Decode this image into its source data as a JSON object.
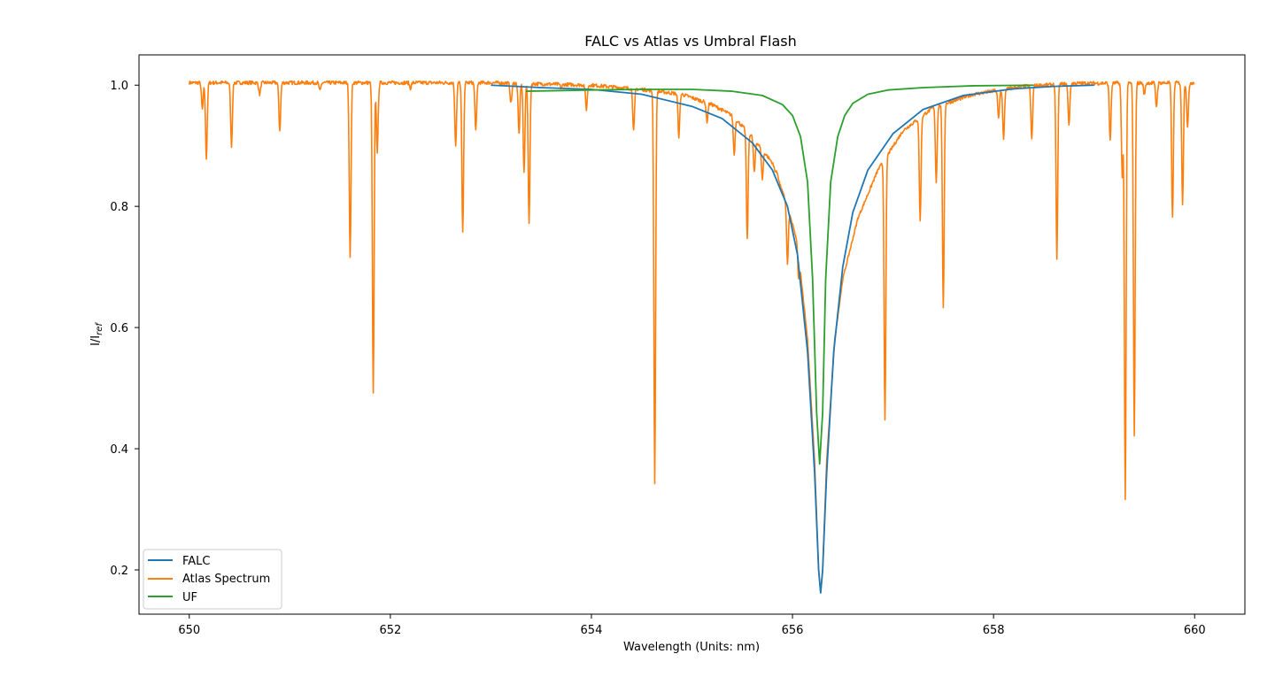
{
  "chart_data": {
    "type": "line",
    "title": "FALC vs Atlas vs Umbral Flash",
    "xlabel": "Wavelength (Units: nm)",
    "ylabel": "I/I_ref",
    "ylabel_main": "I/I",
    "ylabel_sub": "ref",
    "xlim": [
      649.5,
      660.5
    ],
    "ylim": [
      0.127,
      1.05
    ],
    "xticks": [
      650,
      652,
      654,
      656,
      658,
      660
    ],
    "xtick_labels": [
      "650",
      "652",
      "654",
      "656",
      "658",
      "660"
    ],
    "yticks": [
      0.2,
      0.4,
      0.6,
      0.8,
      1.0
    ],
    "ytick_labels": [
      "0.2",
      "0.4",
      "0.6",
      "0.8",
      "1.0"
    ],
    "grid": false,
    "legend_position": "lower-left",
    "line_center": 656.28,
    "series": [
      {
        "name": "FALC",
        "color": "#1f77b4",
        "x": [
          653.0,
          653.5,
          654.0,
          654.5,
          655.0,
          655.3,
          655.6,
          655.8,
          655.95,
          656.05,
          656.15,
          656.22,
          656.26,
          656.28,
          656.3,
          656.34,
          656.41,
          656.5,
          656.6,
          656.75,
          657.0,
          657.3,
          657.7,
          658.2,
          658.6,
          659.0
        ],
        "y": [
          1.0,
          0.996,
          0.993,
          0.985,
          0.965,
          0.945,
          0.905,
          0.86,
          0.8,
          0.72,
          0.56,
          0.36,
          0.2,
          0.162,
          0.2,
          0.36,
          0.56,
          0.7,
          0.79,
          0.86,
          0.92,
          0.96,
          0.983,
          0.994,
          0.998,
          1.0
        ]
      },
      {
        "name": "Atlas Spectrum",
        "color": "#ff7f0e",
        "continuum": [
          [
            650.0,
            1.004
          ],
          [
            653.0,
            1.004
          ],
          [
            653.5,
            1.002
          ],
          [
            654.0,
            1.0
          ],
          [
            654.5,
            0.993
          ],
          [
            654.9,
            0.985
          ],
          [
            655.2,
            0.968
          ],
          [
            655.4,
            0.95
          ],
          [
            655.6,
            0.915
          ],
          [
            655.8,
            0.872
          ],
          [
            655.95,
            0.8
          ],
          [
            656.05,
            0.74
          ],
          [
            656.15,
            0.58
          ],
          [
            656.22,
            0.38
          ],
          [
            656.26,
            0.2
          ],
          [
            656.28,
            0.163
          ],
          [
            656.3,
            0.2
          ],
          [
            656.34,
            0.38
          ],
          [
            656.42,
            0.58
          ],
          [
            656.5,
            0.68
          ],
          [
            656.65,
            0.78
          ],
          [
            656.85,
            0.86
          ],
          [
            657.1,
            0.925
          ],
          [
            657.4,
            0.963
          ],
          [
            657.8,
            0.985
          ],
          [
            658.3,
            0.998
          ],
          [
            658.8,
            1.003
          ],
          [
            660.0,
            1.004
          ]
        ],
        "absorption_lines": [
          [
            650.13,
            0.96
          ],
          [
            650.17,
            0.88
          ],
          [
            650.42,
            0.9
          ],
          [
            650.7,
            0.985
          ],
          [
            650.9,
            0.925
          ],
          [
            651.3,
            0.99
          ],
          [
            651.6,
            0.715
          ],
          [
            651.83,
            0.49
          ],
          [
            651.87,
            0.89
          ],
          [
            652.2,
            0.995
          ],
          [
            652.65,
            0.9
          ],
          [
            652.72,
            0.755
          ],
          [
            652.85,
            0.925
          ],
          [
            653.2,
            0.97
          ],
          [
            653.28,
            0.92
          ],
          [
            653.33,
            0.855
          ],
          [
            653.38,
            0.77
          ],
          [
            653.7,
            0.995
          ],
          [
            653.95,
            0.96
          ],
          [
            654.42,
            0.925
          ],
          [
            654.63,
            0.345
          ],
          [
            654.87,
            0.915
          ],
          [
            655.15,
            0.94
          ],
          [
            655.42,
            0.885
          ],
          [
            655.55,
            0.745
          ],
          [
            655.62,
            0.855
          ],
          [
            655.7,
            0.845
          ],
          [
            655.85,
            0.855
          ],
          [
            655.95,
            0.705
          ],
          [
            656.06,
            0.68
          ],
          [
            656.92,
            0.445
          ],
          [
            657.27,
            0.775
          ],
          [
            657.43,
            0.84
          ],
          [
            657.5,
            0.63
          ],
          [
            658.05,
            0.945
          ],
          [
            658.1,
            0.91
          ],
          [
            658.38,
            0.91
          ],
          [
            658.63,
            0.715
          ],
          [
            658.75,
            0.935
          ],
          [
            659.16,
            0.91
          ],
          [
            659.28,
            0.85
          ],
          [
            659.31,
            0.315
          ],
          [
            659.4,
            0.42
          ],
          [
            659.5,
            0.985
          ],
          [
            659.62,
            0.965
          ],
          [
            659.78,
            0.78
          ],
          [
            659.88,
            0.805
          ],
          [
            659.93,
            0.93
          ]
        ]
      },
      {
        "name": "UF",
        "color": "#2ca02c",
        "x": [
          653.35,
          654.0,
          654.5,
          655.0,
          655.4,
          655.7,
          655.9,
          656.0,
          656.08,
          656.15,
          656.2,
          656.24,
          656.27,
          656.3,
          656.33,
          656.38,
          656.45,
          656.52,
          656.6,
          656.75,
          656.95,
          657.3,
          657.8,
          658.4
        ],
        "y": [
          0.99,
          0.992,
          0.993,
          0.993,
          0.99,
          0.983,
          0.968,
          0.95,
          0.915,
          0.84,
          0.68,
          0.46,
          0.375,
          0.46,
          0.68,
          0.84,
          0.915,
          0.95,
          0.97,
          0.985,
          0.992,
          0.996,
          0.999,
          1.0
        ]
      }
    ]
  }
}
